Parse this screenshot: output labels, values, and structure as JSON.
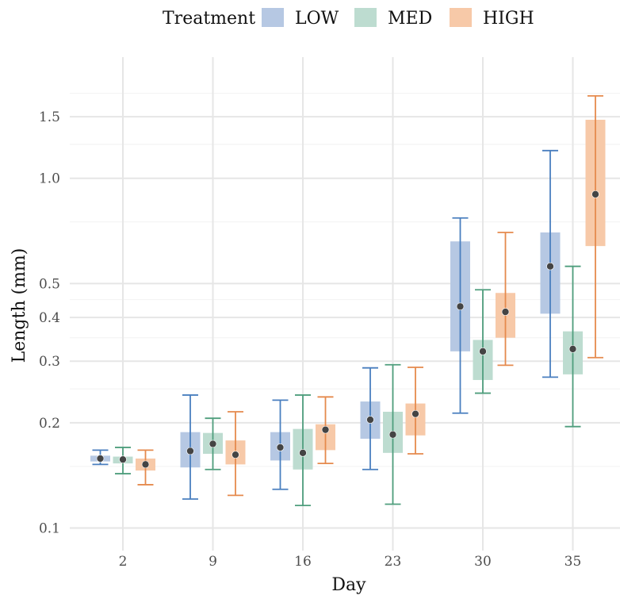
{
  "chart_data": {
    "type": "box",
    "xlabel": "Day",
    "ylabel": "Length (mm)",
    "y_scale": "log",
    "ylim": [
      0.088,
      2.0
    ],
    "y_ticks": [
      0.1,
      0.2,
      0.3,
      0.4,
      0.5,
      1.0,
      1.5
    ],
    "y_tick_labels": [
      "0.1",
      "0.2",
      "0.3",
      "0.4",
      "0.5",
      "1.0",
      "1.5"
    ],
    "categories": [
      "2",
      "9",
      "16",
      "23",
      "30",
      "35"
    ],
    "legend": {
      "title": "Treatment",
      "position": "top"
    },
    "series": [
      {
        "name": "LOW",
        "color": "#4a7fbf",
        "fill": "#b6c8e3",
        "whisker_low": [
          0.152,
          0.121,
          0.129,
          0.147,
          0.213,
          0.27
        ],
        "q1": [
          0.155,
          0.149,
          0.156,
          0.18,
          0.32,
          0.41
        ],
        "q3": [
          0.161,
          0.188,
          0.188,
          0.23,
          0.66,
          0.7
        ],
        "whisker_high": [
          0.167,
          0.24,
          0.232,
          0.287,
          0.77,
          1.2
        ],
        "mean": [
          0.158,
          0.166,
          0.17,
          0.204,
          0.43,
          0.56
        ]
      },
      {
        "name": "MED",
        "color": "#4f9e7d",
        "fill": "#bddcd0",
        "whisker_low": [
          0.143,
          0.147,
          0.116,
          0.117,
          0.243,
          0.195
        ],
        "q1": [
          0.153,
          0.163,
          0.147,
          0.164,
          0.265,
          0.275
        ],
        "q3": [
          0.16,
          0.187,
          0.192,
          0.215,
          0.345,
          0.365
        ],
        "whisker_high": [
          0.17,
          0.206,
          0.24,
          0.293,
          0.48,
          0.56
        ],
        "mean": [
          0.157,
          0.174,
          0.164,
          0.185,
          0.32,
          0.325
        ]
      },
      {
        "name": "HIGH",
        "color": "#e58a4d",
        "fill": "#f7c9a8",
        "whisker_low": [
          0.133,
          0.124,
          0.153,
          0.163,
          0.292,
          0.307
        ],
        "q1": [
          0.146,
          0.152,
          0.167,
          0.184,
          0.35,
          0.64
        ],
        "q3": [
          0.158,
          0.178,
          0.198,
          0.227,
          0.47,
          1.47
        ],
        "whisker_high": [
          0.167,
          0.215,
          0.237,
          0.288,
          0.7,
          1.72
        ],
        "mean": [
          0.152,
          0.162,
          0.191,
          0.212,
          0.415,
          0.9
        ]
      }
    ]
  }
}
